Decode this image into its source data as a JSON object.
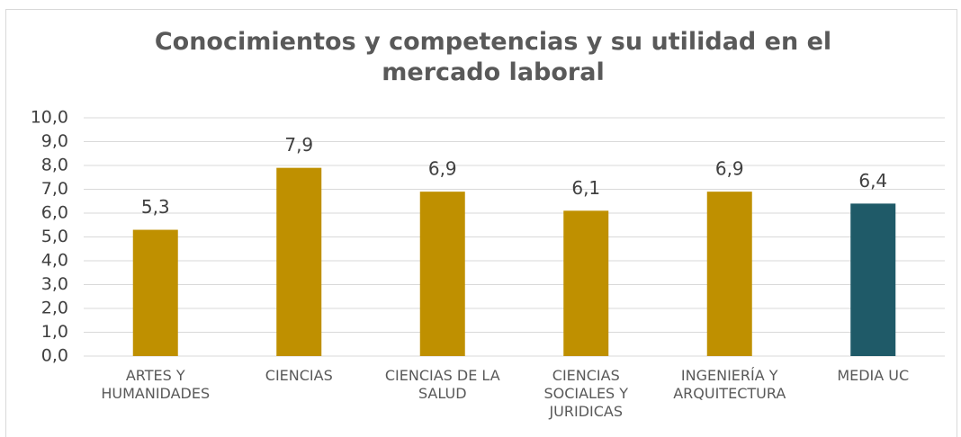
{
  "chart_data": {
    "type": "bar",
    "title": "Conocimientos y competencias y su utilidad en el mercado laboral",
    "categories": [
      "ARTES Y HUMANIDADES",
      "CIENCIAS",
      "CIENCIAS DE LA SALUD",
      "CIENCIAS SOCIALES Y JURIDICAS",
      "INGENIERÍA Y ARQUITECTURA",
      "MEDIA UC"
    ],
    "values": [
      5.3,
      7.9,
      6.9,
      6.1,
      6.9,
      6.4
    ],
    "value_labels": [
      "5,3",
      "7,9",
      "6,9",
      "6,1",
      "6,9",
      "6,4"
    ],
    "colors": [
      "#bf9000",
      "#bf9000",
      "#bf9000",
      "#bf9000",
      "#bf9000",
      "#1f5a68"
    ],
    "ylim": [
      0,
      10
    ],
    "yticks": [
      {
        "value": 0,
        "label": "0,0"
      },
      {
        "value": 1,
        "label": "1,0"
      },
      {
        "value": 2,
        "label": "2,0"
      },
      {
        "value": 3,
        "label": "3,0"
      },
      {
        "value": 4,
        "label": "4,0"
      },
      {
        "value": 5,
        "label": "5,0"
      },
      {
        "value": 6,
        "label": "6,0"
      },
      {
        "value": 7,
        "label": "7,0"
      },
      {
        "value": 8,
        "label": "8,0"
      },
      {
        "value": 9,
        "label": "9,0"
      },
      {
        "value": 10,
        "label": "10,0"
      }
    ],
    "grid": true
  }
}
